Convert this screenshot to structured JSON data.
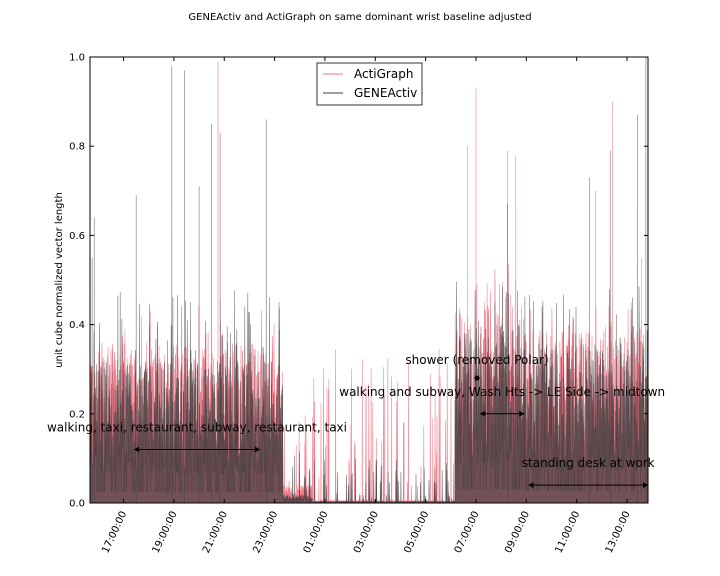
{
  "chart_data": {
    "type": "line",
    "title": "GENEActiv and ActiGraph on same dominant wrist baseline adjusted",
    "ylabel": "unit cube normalized vector length",
    "xlabel": "",
    "xlim": [
      "15:40",
      "13:50"
    ],
    "ylim": [
      0.0,
      1.0
    ],
    "yticks": [
      0.0,
      0.2,
      0.4,
      0.6,
      0.8,
      1.0
    ],
    "ytick_labels": [
      "0.0",
      "0.2",
      "0.4",
      "0.6",
      "0.8",
      "1.0"
    ],
    "xticks": [
      "17:00",
      "19:00",
      "21:00",
      "23:00",
      "01:00",
      "03:00",
      "05:00",
      "07:00",
      "09:00",
      "11:00",
      "13:00"
    ],
    "xtick_labels": [
      "17:00:00",
      "19:00:00",
      "21:00:00",
      "23:00:00",
      "01:00:00",
      "03:00:00",
      "05:00:00",
      "07:00:00",
      "09:00:00",
      "11:00:00",
      "13:00:00"
    ],
    "legend_position": "top-center",
    "series": [
      {
        "name": "ActiGraph",
        "color": "#f07080",
        "opacity": 0.85,
        "segments": [
          {
            "start": "15:40",
            "end": "23:20",
            "level": 0.18,
            "peak": 0.45
          },
          {
            "start": "23:20",
            "end": "00:30",
            "level": 0.02,
            "peak": 0.25
          },
          {
            "start": "00:30",
            "end": "06:10",
            "level": 0.003,
            "peak": 0.35
          },
          {
            "start": "06:10",
            "end": "09:00",
            "level": 0.22,
            "peak": 0.55
          },
          {
            "start": "09:00",
            "end": "13:50",
            "level": 0.2,
            "peak": 0.45
          }
        ],
        "notable_peaks": [
          {
            "t": "20:45",
            "y": 0.99
          },
          {
            "t": "06:40",
            "y": 0.8
          },
          {
            "t": "07:00",
            "y": 0.93
          },
          {
            "t": "08:15",
            "y": 0.79
          },
          {
            "t": "08:35",
            "y": 0.78
          },
          {
            "t": "11:45",
            "y": 0.7
          },
          {
            "t": "12:25",
            "y": 0.9
          },
          {
            "t": "13:35",
            "y": 0.55
          }
        ]
      },
      {
        "name": "GENEActiv",
        "color": "#3c3c3c",
        "opacity": 0.7,
        "segments": [
          {
            "start": "15:40",
            "end": "23:20",
            "level": 0.16,
            "peak": 0.48
          },
          {
            "start": "23:20",
            "end": "00:30",
            "level": 0.01,
            "peak": 0.15
          },
          {
            "start": "00:30",
            "end": "06:10",
            "level": 0.002,
            "peak": 0.1
          },
          {
            "start": "06:10",
            "end": "09:00",
            "level": 0.2,
            "peak": 0.5
          },
          {
            "start": "09:00",
            "end": "13:50",
            "level": 0.18,
            "peak": 0.5
          }
        ],
        "notable_peaks": [
          {
            "t": "15:45",
            "y": 0.55
          },
          {
            "t": "15:50",
            "y": 0.64
          },
          {
            "t": "17:30",
            "y": 0.69
          },
          {
            "t": "18:55",
            "y": 0.98
          },
          {
            "t": "19:25",
            "y": 0.97
          },
          {
            "t": "20:00",
            "y": 0.71
          },
          {
            "t": "20:30",
            "y": 0.85
          },
          {
            "t": "20:50",
            "y": 0.83
          },
          {
            "t": "22:40",
            "y": 0.86
          },
          {
            "t": "08:15",
            "y": 0.67
          },
          {
            "t": "11:30",
            "y": 0.73
          },
          {
            "t": "12:20",
            "y": 0.79
          },
          {
            "t": "13:25",
            "y": 0.87
          },
          {
            "t": "13:45",
            "y": 1.0
          }
        ]
      }
    ],
    "annotations": [
      {
        "text": "walking, taxi, restaurant, subway, restaurant, taxi",
        "start": "17:25",
        "end": "22:25",
        "y": 0.12
      },
      {
        "text": "shower (removed Polar)",
        "start": "06:55",
        "end": "07:10",
        "y": 0.28
      },
      {
        "text": "walking and subway, Wash Hts -> LE Side -> midtown",
        "start": "07:10",
        "end": "08:55",
        "y": 0.2
      },
      {
        "text": "standing desk at work",
        "start": "09:05",
        "end": "13:50",
        "y": 0.04
      }
    ]
  }
}
